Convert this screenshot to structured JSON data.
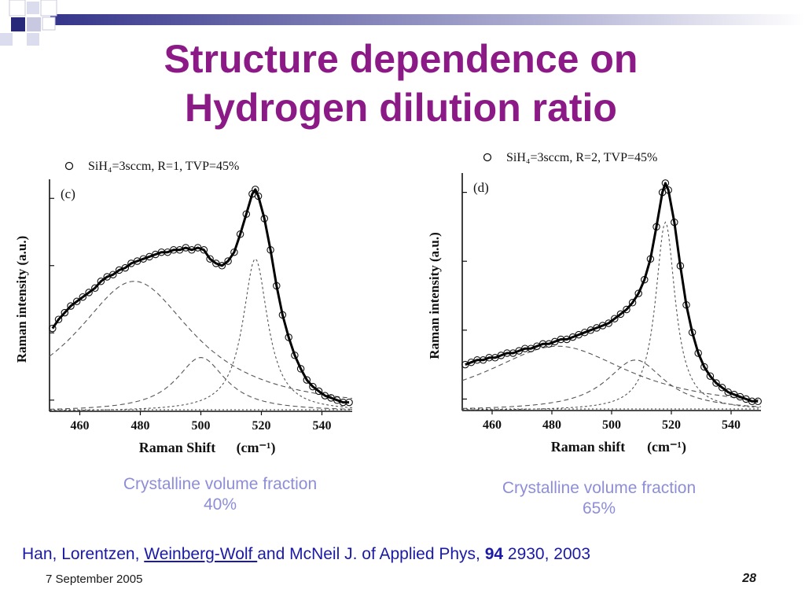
{
  "slide": {
    "title": "Structure dependence on Hydrogen dilution ratio",
    "accent_color": "#8b1a87",
    "caption_color": "#8e8ed8",
    "reference_color": "#1a1aa6",
    "date": "7 September 2005",
    "page_number": "28"
  },
  "captions": {
    "left": {
      "line1": "Crystalline volume fraction",
      "line2": "40%"
    },
    "right": {
      "line1": "Crystalline volume fraction",
      "line2": "65%"
    }
  },
  "reference": {
    "authors_part1": "Han, Lorentzen, ",
    "authors_link": "Weinberg-Wolf ",
    "authors_part2": "and McNeil J. of Applied Phys, ",
    "volume": "94",
    "pages_year": " 2930, 2003"
  },
  "chart_data": [
    {
      "type": "scatter",
      "panel_label": "(c)",
      "legend": "SiH₄=3sccm, R=1, TVP=45%",
      "xlabel": "Raman Shift",
      "xlabel_unit": "(cm⁻¹)",
      "ylabel": "Raman intensity  (a.u.)",
      "xlim": [
        450,
        550
      ],
      "ylim": [
        0,
        1
      ],
      "x_ticks": [
        460,
        480,
        500,
        520,
        540
      ],
      "components": {
        "amorphous": {
          "center": 478,
          "amp": 0.58,
          "width": 24
        },
        "intermediate": {
          "center": 500,
          "amp": 0.24,
          "width": 10
        },
        "crystalline": {
          "center": 518,
          "amp": 0.68,
          "width": 5
        },
        "baseline": 0.0
      },
      "points": [
        [
          451,
          0.37
        ],
        [
          453,
          0.41
        ],
        [
          455,
          0.44
        ],
        [
          457,
          0.47
        ],
        [
          459,
          0.49
        ],
        [
          461,
          0.51
        ],
        [
          463,
          0.53
        ],
        [
          465,
          0.55
        ],
        [
          467,
          0.58
        ],
        [
          469,
          0.6
        ],
        [
          471,
          0.61
        ],
        [
          473,
          0.63
        ],
        [
          475,
          0.64
        ],
        [
          477,
          0.66
        ],
        [
          479,
          0.67
        ],
        [
          481,
          0.68
        ],
        [
          483,
          0.69
        ],
        [
          485,
          0.7
        ],
        [
          487,
          0.71
        ],
        [
          489,
          0.71
        ],
        [
          491,
          0.72
        ],
        [
          493,
          0.72
        ],
        [
          495,
          0.73
        ],
        [
          497,
          0.72
        ],
        [
          499,
          0.73
        ],
        [
          501,
          0.72
        ],
        [
          503,
          0.68
        ],
        [
          505,
          0.66
        ],
        [
          507,
          0.65
        ],
        [
          509,
          0.67
        ],
        [
          511,
          0.71
        ],
        [
          513,
          0.79
        ],
        [
          515,
          0.88
        ],
        [
          517,
          0.97
        ],
        [
          518,
          0.99
        ],
        [
          519,
          0.96
        ],
        [
          521,
          0.86
        ],
        [
          523,
          0.72
        ],
        [
          525,
          0.56
        ],
        [
          527,
          0.43
        ],
        [
          529,
          0.33
        ],
        [
          531,
          0.25
        ],
        [
          533,
          0.19
        ],
        [
          535,
          0.14
        ],
        [
          537,
          0.11
        ],
        [
          539,
          0.09
        ],
        [
          541,
          0.07
        ],
        [
          543,
          0.06
        ],
        [
          545,
          0.05
        ],
        [
          547,
          0.04
        ],
        [
          549,
          0.04
        ]
      ]
    },
    {
      "type": "scatter",
      "panel_label": "(d)",
      "legend": "SiH₄=3sccm, R=2, TVP=45%",
      "xlabel": "Raman shift",
      "xlabel_unit": "(cm⁻¹)",
      "ylabel": "Raman intensity  (a.u.)",
      "xlim": [
        450,
        550
      ],
      "ylim": [
        0,
        1
      ],
      "x_ticks": [
        460,
        480,
        500,
        520,
        540
      ],
      "components": {
        "amorphous": {
          "center": 482,
          "amp": 0.28,
          "width": 30
        },
        "intermediate": {
          "center": 508,
          "amp": 0.22,
          "width": 12
        },
        "crystalline": {
          "center": 518,
          "amp": 0.82,
          "width": 4
        },
        "baseline": 0.0
      },
      "points": [
        [
          451,
          0.2
        ],
        [
          453,
          0.21
        ],
        [
          455,
          0.22
        ],
        [
          457,
          0.22
        ],
        [
          459,
          0.23
        ],
        [
          461,
          0.23
        ],
        [
          463,
          0.24
        ],
        [
          465,
          0.25
        ],
        [
          467,
          0.25
        ],
        [
          469,
          0.26
        ],
        [
          471,
          0.27
        ],
        [
          473,
          0.27
        ],
        [
          475,
          0.28
        ],
        [
          477,
          0.29
        ],
        [
          479,
          0.29
        ],
        [
          481,
          0.3
        ],
        [
          483,
          0.31
        ],
        [
          485,
          0.31
        ],
        [
          487,
          0.32
        ],
        [
          489,
          0.33
        ],
        [
          491,
          0.34
        ],
        [
          493,
          0.35
        ],
        [
          495,
          0.36
        ],
        [
          497,
          0.37
        ],
        [
          499,
          0.38
        ],
        [
          501,
          0.4
        ],
        [
          503,
          0.42
        ],
        [
          505,
          0.44
        ],
        [
          507,
          0.47
        ],
        [
          509,
          0.51
        ],
        [
          511,
          0.57
        ],
        [
          513,
          0.66
        ],
        [
          515,
          0.8
        ],
        [
          517,
          0.95
        ],
        [
          518,
          0.99
        ],
        [
          519,
          0.96
        ],
        [
          521,
          0.82
        ],
        [
          523,
          0.63
        ],
        [
          525,
          0.46
        ],
        [
          527,
          0.34
        ],
        [
          529,
          0.25
        ],
        [
          531,
          0.19
        ],
        [
          533,
          0.15
        ],
        [
          535,
          0.12
        ],
        [
          537,
          0.1
        ],
        [
          539,
          0.08
        ],
        [
          541,
          0.07
        ],
        [
          543,
          0.06
        ],
        [
          545,
          0.05
        ],
        [
          547,
          0.04
        ],
        [
          549,
          0.04
        ]
      ]
    }
  ]
}
